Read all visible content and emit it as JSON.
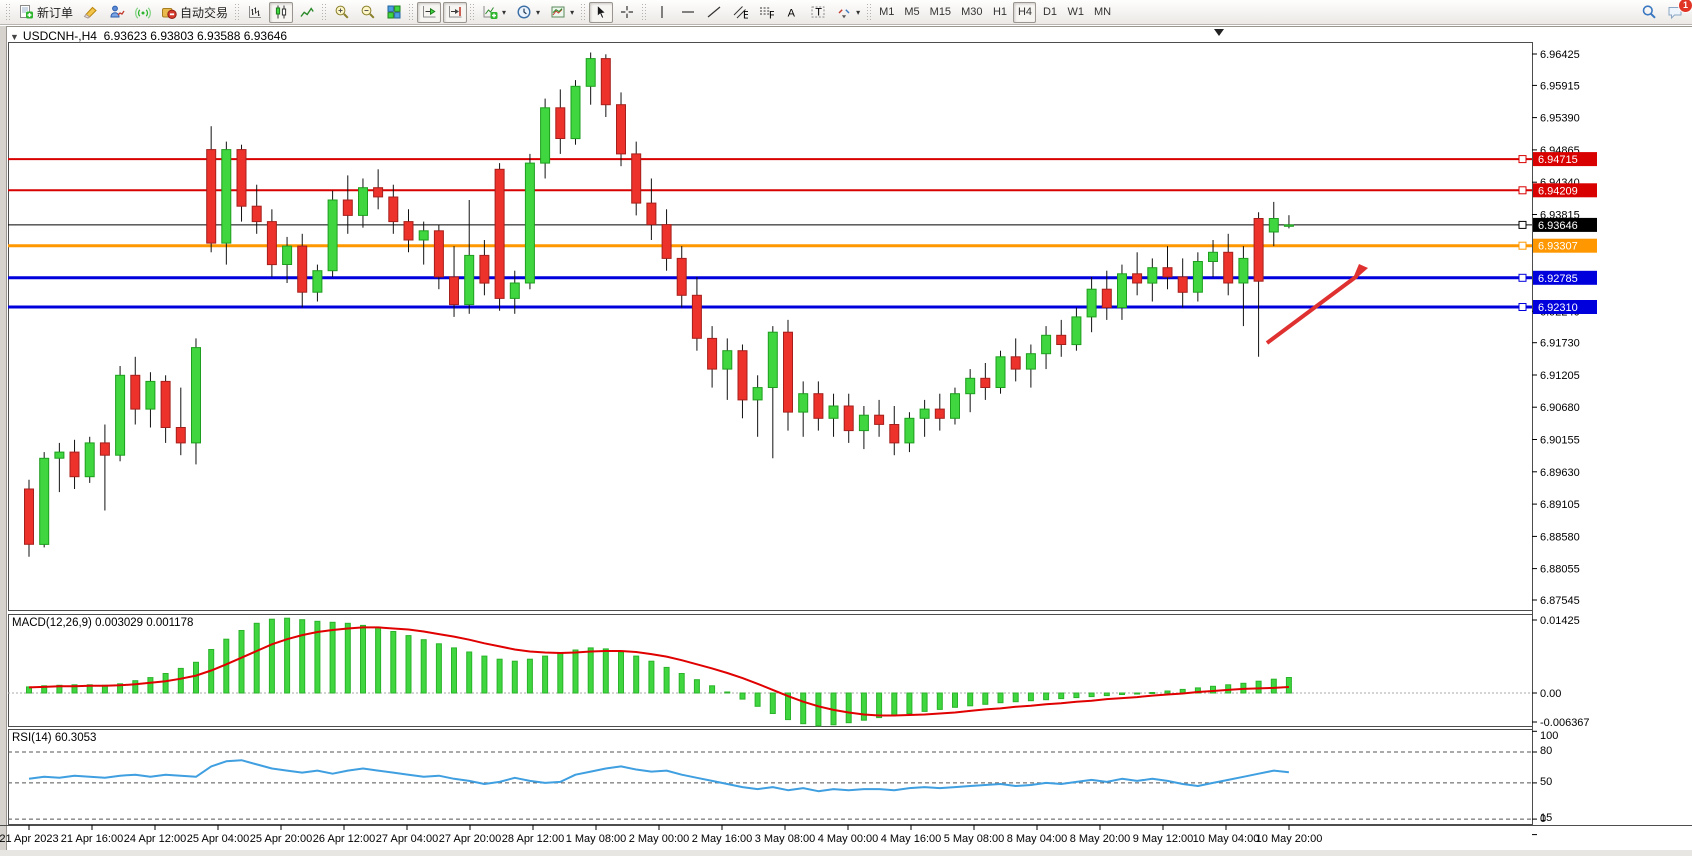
{
  "toolbar": {
    "groups": [
      {
        "name": "trade-group",
        "items": [
          {
            "name": "new-order-button",
            "icon": "new-order",
            "label": "新订单"
          },
          {
            "name": "marker-pen-button",
            "icon": "marker-pen"
          },
          {
            "name": "market-watch-button",
            "icon": "person-chart"
          },
          {
            "name": "signals-button",
            "icon": "signal"
          },
          {
            "name": "auto-trading-button",
            "icon": "autotrade",
            "label": "自动交易"
          }
        ]
      },
      {
        "name": "chart-type-group",
        "items": [
          {
            "name": "bar-chart-button",
            "icon": "bar-chart"
          },
          {
            "name": "candlestick-chart-button",
            "icon": "candlestick",
            "active": true
          },
          {
            "name": "line-chart-button",
            "icon": "line-chart"
          }
        ]
      },
      {
        "name": "zoom-group",
        "items": [
          {
            "name": "zoom-in-button",
            "icon": "zoom-in"
          },
          {
            "name": "zoom-out-button",
            "icon": "zoom-out"
          },
          {
            "name": "tile-windows-button",
            "icon": "tile-windows"
          }
        ]
      },
      {
        "name": "scroll-group",
        "items": [
          {
            "name": "auto-scroll-button",
            "icon": "auto-scroll",
            "active": true
          },
          {
            "name": "chart-shift-button",
            "icon": "chart-shift",
            "active": true
          }
        ]
      },
      {
        "name": "objects-group",
        "items": [
          {
            "name": "indicators-button",
            "icon": "new-chart",
            "dropdown": true
          },
          {
            "name": "periods-button",
            "icon": "clock",
            "dropdown": true
          },
          {
            "name": "templates-button",
            "icon": "template",
            "dropdown": true
          }
        ]
      },
      {
        "name": "pointer-group",
        "items": [
          {
            "name": "cursor-button",
            "icon": "cursor",
            "active": true
          },
          {
            "name": "crosshair-button",
            "icon": "crosshair"
          }
        ]
      },
      {
        "name": "draw-group",
        "items": [
          {
            "name": "vertical-line-button",
            "icon": "vline"
          },
          {
            "name": "horizontal-line-button",
            "icon": "hline"
          },
          {
            "name": "trendline-button",
            "icon": "trendline"
          },
          {
            "name": "equidistant-channel-button",
            "icon": "channel"
          },
          {
            "name": "fibonacci-button",
            "icon": "fibonacci"
          },
          {
            "name": "text-button",
            "icon": "text"
          },
          {
            "name": "text-label-button",
            "icon": "text-label"
          },
          {
            "name": "arrows-button",
            "icon": "arrows",
            "dropdown": true
          }
        ]
      },
      {
        "name": "timeframes-group",
        "items": [
          {
            "name": "timeframe-m1",
            "label": "M1"
          },
          {
            "name": "timeframe-m5",
            "label": "M5"
          },
          {
            "name": "timeframe-m15",
            "label": "M15"
          },
          {
            "name": "timeframe-m30",
            "label": "M30"
          },
          {
            "name": "timeframe-h1",
            "label": "H1"
          },
          {
            "name": "timeframe-h4",
            "label": "H4",
            "active": true
          },
          {
            "name": "timeframe-d1",
            "label": "D1"
          },
          {
            "name": "timeframe-w1",
            "label": "W1"
          },
          {
            "name": "timeframe-mn",
            "label": "MN"
          }
        ]
      }
    ],
    "right_items": [
      {
        "name": "search-button",
        "icon": "search"
      },
      {
        "name": "chat-button",
        "icon": "chat",
        "badge": "1"
      }
    ]
  },
  "chart": {
    "title": "USDCNH-,H4  6.93623 6.93803 6.93588 6.93646",
    "one_click_arrow": "▼"
  },
  "chart_data": {
    "type": "candlestick",
    "symbol": "USDCNH-",
    "period": "H4",
    "ohlc_display": {
      "open": 6.93623,
      "high": 6.93803,
      "low": 6.93588,
      "close": 6.93646
    },
    "price_axis": {
      "anchor": {
        "max": {
          "value": 6.96425
        },
        "min": {
          "value": 6.87545
        }
      },
      "ticks": [
        "6.96425",
        "6.95915",
        "6.95390",
        "6.94865",
        "6.94340",
        "6.93815",
        "6.92240",
        "6.91730",
        "6.91205",
        "6.90680",
        "6.90155",
        "6.89630",
        "6.89105",
        "6.88580",
        "6.88055",
        "6.87545"
      ]
    },
    "levels": [
      {
        "name": "resistance-line-1",
        "value": 6.94715,
        "label": "6.94715",
        "color": "#d90000",
        "thickness": 2
      },
      {
        "name": "resistance-line-2",
        "value": 6.94209,
        "label": "6.94209",
        "color": "#d90000",
        "thickness": 2
      },
      {
        "name": "current-price-line",
        "value": 6.93646,
        "label": "6.93646",
        "color": "#000000",
        "thickness": 1
      },
      {
        "name": "pivot-line",
        "value": 6.93307,
        "label": "6.93307",
        "color": "#ff9800",
        "thickness": 3
      },
      {
        "name": "support-line-1",
        "value": 6.92785,
        "label": "6.92785",
        "color": "#0000dd",
        "thickness": 3
      },
      {
        "name": "support-line-2",
        "value": 6.9231,
        "label": "6.92310",
        "color": "#0000dd",
        "thickness": 3
      }
    ],
    "time_labels": [
      "21 Apr 2023",
      "21 Apr 16:00",
      "24 Apr 12:00",
      "25 Apr 04:00",
      "25 Apr 20:00",
      "26 Apr 12:00",
      "27 Apr 04:00",
      "27 Apr 20:00",
      "28 Apr 12:00",
      "1 May 08:00",
      "2 May 00:00",
      "2 May 16:00",
      "3 May 08:00",
      "4 May 00:00",
      "4 May 16:00",
      "5 May 08:00",
      "8 May 04:00",
      "8 May 20:00",
      "9 May 12:00",
      "10 May 04:00",
      "10 May 20:00"
    ],
    "candles": [
      [
        6.8935,
        6.895,
        6.8825,
        6.8845
      ],
      [
        6.8845,
        6.8995,
        6.884,
        6.8985
      ],
      [
        6.8985,
        6.901,
        6.893,
        6.8995
      ],
      [
        6.8995,
        6.9015,
        6.8935,
        6.8955
      ],
      [
        6.8955,
        6.902,
        6.8945,
        6.901
      ],
      [
        6.901,
        6.904,
        6.89,
        6.899
      ],
      [
        6.899,
        6.9135,
        6.898,
        6.912
      ],
      [
        6.912,
        6.915,
        6.904,
        6.9065
      ],
      [
        6.9065,
        6.9125,
        6.9035,
        6.911
      ],
      [
        6.911,
        6.912,
        6.901,
        6.9035
      ],
      [
        6.9035,
        6.91,
        6.899,
        6.901
      ],
      [
        6.901,
        6.918,
        6.8975,
        6.9165
      ],
      [
        6.9487,
        6.9525,
        6.932,
        6.9335
      ],
      [
        6.9335,
        6.95,
        6.93,
        6.9487
      ],
      [
        6.9487,
        6.9495,
        6.937,
        6.9395
      ],
      [
        6.9395,
        6.943,
        6.935,
        6.937
      ],
      [
        6.937,
        6.939,
        6.928,
        6.93
      ],
      [
        6.93,
        6.9345,
        6.927,
        6.933
      ],
      [
        6.933,
        6.935,
        6.923,
        6.9255
      ],
      [
        6.9255,
        6.93,
        6.924,
        6.929
      ],
      [
        6.929,
        6.942,
        6.928,
        6.9405
      ],
      [
        6.9405,
        6.9445,
        6.935,
        6.938
      ],
      [
        6.938,
        6.944,
        6.936,
        6.9425
      ],
      [
        6.9425,
        6.9455,
        6.939,
        6.941
      ],
      [
        6.941,
        6.943,
        6.935,
        6.937
      ],
      [
        6.937,
        6.939,
        6.932,
        6.934
      ],
      [
        6.934,
        6.937,
        6.93,
        6.9355
      ],
      [
        6.9355,
        6.9365,
        6.926,
        6.928
      ],
      [
        6.928,
        6.933,
        6.9215,
        6.9235
      ],
      [
        6.9235,
        6.9405,
        6.922,
        6.9315
      ],
      [
        6.9315,
        6.934,
        6.925,
        6.927
      ],
      [
        6.9455,
        6.9465,
        6.9225,
        6.9245
      ],
      [
        6.9245,
        6.929,
        6.922,
        6.927
      ],
      [
        6.927,
        6.948,
        6.926,
        6.9465
      ],
      [
        6.9465,
        6.957,
        6.944,
        6.9555
      ],
      [
        6.9555,
        6.9585,
        6.948,
        6.9505
      ],
      [
        6.9505,
        6.96,
        6.9495,
        6.959
      ],
      [
        6.959,
        6.9645,
        6.956,
        6.9635
      ],
      [
        6.9635,
        6.9642,
        6.954,
        6.956
      ],
      [
        6.956,
        6.958,
        6.946,
        6.948
      ],
      [
        6.948,
        6.95,
        6.938,
        6.94
      ],
      [
        6.94,
        6.944,
        6.934,
        6.9365
      ],
      [
        6.9365,
        6.939,
        6.929,
        6.931
      ],
      [
        6.931,
        6.933,
        6.923,
        6.925
      ],
      [
        6.925,
        6.928,
        6.916,
        6.918
      ],
      [
        6.918,
        6.92,
        6.91,
        6.913
      ],
      [
        6.913,
        6.918,
        6.908,
        6.916
      ],
      [
        6.916,
        6.917,
        6.905,
        6.908
      ],
      [
        6.908,
        6.912,
        6.902,
        6.91
      ],
      [
        6.91,
        6.92,
        6.8985,
        6.919
      ],
      [
        6.919,
        6.921,
        6.903,
        6.906
      ],
      [
        6.906,
        6.911,
        6.902,
        6.909
      ],
      [
        6.909,
        6.911,
        6.903,
        6.905
      ],
      [
        6.905,
        6.909,
        6.902,
        6.907
      ],
      [
        6.907,
        6.909,
        6.901,
        6.903
      ],
      [
        6.903,
        6.907,
        6.9,
        6.9055
      ],
      [
        6.9055,
        6.908,
        6.902,
        6.904
      ],
      [
        6.904,
        6.907,
        6.899,
        6.901
      ],
      [
        6.901,
        6.906,
        6.8995,
        6.905
      ],
      [
        6.905,
        6.908,
        6.902,
        6.9065
      ],
      [
        6.9065,
        6.909,
        6.903,
        6.905
      ],
      [
        6.905,
        6.91,
        6.904,
        6.909
      ],
      [
        6.909,
        6.913,
        6.906,
        6.9115
      ],
      [
        6.9115,
        6.914,
        6.908,
        6.91
      ],
      [
        6.91,
        6.916,
        6.909,
        6.915
      ],
      [
        6.915,
        6.918,
        6.911,
        6.913
      ],
      [
        6.913,
        6.917,
        6.91,
        6.9155
      ],
      [
        6.9155,
        6.92,
        6.913,
        6.9185
      ],
      [
        6.9185,
        6.921,
        6.915,
        6.917
      ],
      [
        6.917,
        6.923,
        6.916,
        6.9215
      ],
      [
        6.9215,
        6.928,
        6.919,
        6.926
      ],
      [
        6.926,
        6.929,
        6.921,
        6.923
      ],
      [
        6.923,
        6.93,
        6.921,
        6.9285
      ],
      [
        6.9285,
        6.932,
        6.925,
        6.927
      ],
      [
        6.927,
        6.931,
        6.924,
        6.9295
      ],
      [
        6.9295,
        6.933,
        6.926,
        6.928
      ],
      [
        6.928,
        6.931,
        6.923,
        6.9255
      ],
      [
        6.9255,
        6.932,
        6.924,
        6.9305
      ],
      [
        6.9305,
        6.934,
        6.928,
        6.932
      ],
      [
        6.932,
        6.935,
        6.925,
        6.927
      ],
      [
        6.927,
        6.933,
        6.92,
        6.931
      ],
      [
        6.9375,
        6.9385,
        6.915,
        6.9273
      ],
      [
        6.9353,
        6.9402,
        6.933,
        6.9375
      ],
      [
        6.93623,
        6.93803,
        6.93588,
        6.93646
      ]
    ],
    "indicators": {
      "macd": {
        "label": "MACD(12,26,9) 0.003029 0.001178",
        "params": "12,26,9",
        "main_value": 0.003029,
        "signal_value": 0.001178,
        "axis_ticks": [
          {
            "label": "0.01425",
            "value": 0.01425
          },
          {
            "label": "0.00",
            "value": 0
          },
          {
            "label": "-0.006367",
            "value": -0.006367
          }
        ],
        "histogram_color": "#3fd63f",
        "signal_color": "#e00000",
        "histogram": [
          0.0012,
          0.0014,
          0.0015,
          0.0016,
          0.0016,
          0.0015,
          0.0018,
          0.0024,
          0.003,
          0.0038,
          0.0048,
          0.006,
          0.0085,
          0.0105,
          0.0122,
          0.0136,
          0.0144,
          0.0146,
          0.0143,
          0.014,
          0.0138,
          0.0136,
          0.0132,
          0.0128,
          0.012,
          0.0112,
          0.0104,
          0.0096,
          0.0088,
          0.008,
          0.0072,
          0.0066,
          0.0062,
          0.0066,
          0.0072,
          0.0078,
          0.0084,
          0.0088,
          0.0086,
          0.008,
          0.0072,
          0.0062,
          0.005,
          0.0038,
          0.0026,
          0.0014,
          0.0002,
          -0.0012,
          -0.0026,
          -0.004,
          -0.0052,
          -0.006,
          -0.0064,
          -0.0062,
          -0.0058,
          -0.0053,
          -0.0048,
          -0.0044,
          -0.004,
          -0.0036,
          -0.0032,
          -0.0028,
          -0.0025,
          -0.0022,
          -0.0019,
          -0.0017,
          -0.0015,
          -0.0013,
          -0.0011,
          -0.0009,
          -0.0007,
          -0.0005,
          -0.0003,
          -0.0001,
          0.0001,
          0.0004,
          0.0007,
          0.001,
          0.0013,
          0.0016,
          0.0019,
          0.0023,
          0.0027,
          0.003029
        ],
        "signal": [
          0.0011,
          0.0012,
          0.0013,
          0.0013,
          0.0014,
          0.0014,
          0.0015,
          0.0017,
          0.002,
          0.0023,
          0.0028,
          0.0034,
          0.0044,
          0.0056,
          0.0069,
          0.0082,
          0.0095,
          0.0105,
          0.0113,
          0.0119,
          0.0123,
          0.0126,
          0.0128,
          0.0128,
          0.0126,
          0.0124,
          0.012,
          0.0115,
          0.011,
          0.0104,
          0.0097,
          0.0091,
          0.0085,
          0.0081,
          0.0079,
          0.0078,
          0.0079,
          0.0081,
          0.0082,
          0.0082,
          0.008,
          0.0076,
          0.0071,
          0.0064,
          0.0056,
          0.0048,
          0.0039,
          0.0029,
          0.0018,
          0.0006,
          -0.0006,
          -0.0017,
          -0.0026,
          -0.0033,
          -0.0038,
          -0.0042,
          -0.0044,
          -0.0044,
          -0.0043,
          -0.0042,
          -0.004,
          -0.0038,
          -0.0035,
          -0.0032,
          -0.003,
          -0.0027,
          -0.0025,
          -0.0022,
          -0.002,
          -0.0017,
          -0.0015,
          -0.0012,
          -0.001,
          -0.0008,
          -0.0005,
          -0.0003,
          -0.0001,
          0.0002,
          0.0004,
          0.0006,
          0.0008,
          0.0009,
          0.001,
          0.001178
        ]
      },
      "rsi": {
        "label": "RSI(14) 60.3053",
        "value": 60.3053,
        "color": "#3f9fe0",
        "level_lines": [
          80,
          50,
          15
        ],
        "axis_ticks": [
          {
            "label": "100",
            "value": 100
          },
          {
            "label": "80",
            "value": 80
          },
          {
            "label": "50",
            "value": 50
          },
          {
            "label": "15",
            "value": 15
          },
          {
            "label": "0",
            "value": 0
          }
        ],
        "values": [
          54,
          56,
          55,
          57,
          56,
          55,
          57,
          58,
          56,
          58,
          57,
          56,
          66,
          71,
          72,
          68,
          64,
          62,
          60,
          62,
          59,
          62,
          64,
          62,
          60,
          58,
          56,
          57,
          54,
          52,
          49,
          51,
          55,
          52,
          50,
          51,
          58,
          61,
          64,
          66,
          63,
          61,
          62,
          58,
          55,
          52,
          49,
          46,
          44,
          46,
          43,
          45,
          42,
          44,
          43,
          44,
          44,
          43,
          45,
          46,
          45,
          46,
          47,
          48,
          49,
          47,
          48,
          50,
          49,
          51,
          53,
          51,
          54,
          52,
          54,
          52,
          49,
          47,
          50,
          53,
          56,
          59,
          62,
          60.3
        ]
      }
    },
    "annotations": [
      {
        "type": "arrow",
        "name": "trend-arrow",
        "from": [
          1267,
          343
        ],
        "to": [
          1368,
          268
        ],
        "color": "#e03131"
      }
    ],
    "colors": {
      "bull": "#3fd63f",
      "bull_border": "#1e9e1e",
      "bear": "#ed312b",
      "bear_border": "#a5201c",
      "wick": "#111111",
      "background": "#ffffff",
      "frame": "#4d4d4d",
      "label_text": "#ffffff"
    }
  }
}
